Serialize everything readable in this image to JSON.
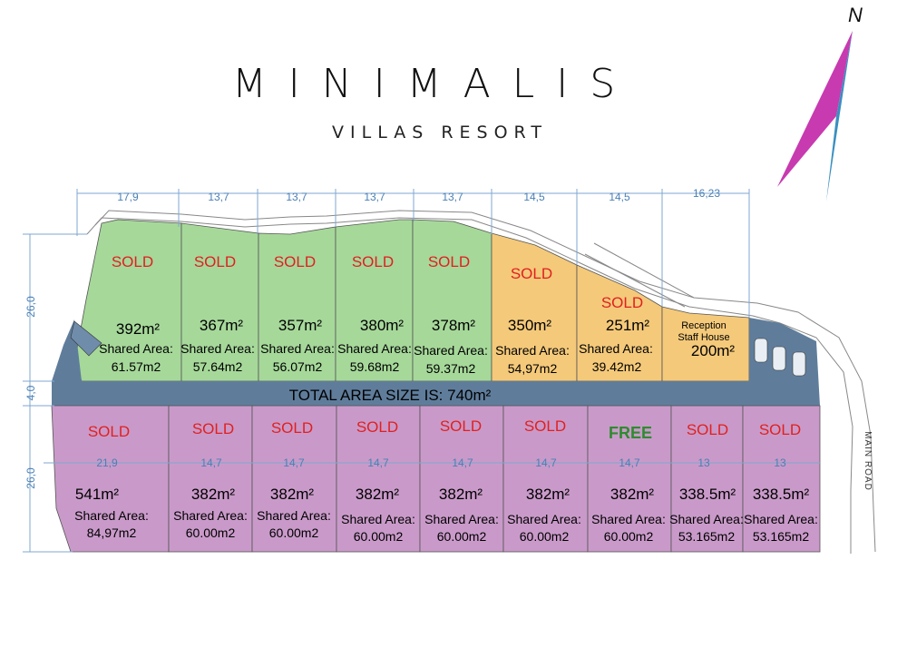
{
  "brand": {
    "title": "MINIMALIS",
    "subtitle": "VILLAS RESORT"
  },
  "compass": {
    "label": "N"
  },
  "colors": {
    "sold_text": "#e02020",
    "free_text": "#2e8b2e",
    "north_row": "#a6d89a",
    "east_row": "#f4c97a",
    "south_row": "#c99ac9",
    "road": "#5f7d9b",
    "dimension": "#4a7fb5"
  },
  "dimensions": {
    "top": [
      "17,9",
      "13,7",
      "13,7",
      "13,7",
      "13,7",
      "14,5",
      "14,5",
      "16,23"
    ],
    "left_top": "26,0",
    "left_mid": "4,0",
    "left_bottom": "26,0"
  },
  "road": {
    "total_label": "TOTAL AREA SIZE IS:",
    "total_value": "740m²",
    "main_road": "MAIN ROAD"
  },
  "top_lots": [
    {
      "status": "SOLD",
      "area": "392m²",
      "shared_label": "Shared Area:",
      "shared": "61.57m2"
    },
    {
      "status": "SOLD",
      "area": "367m²",
      "shared_label": "Shared Area:",
      "shared": "57.64m2"
    },
    {
      "status": "SOLD",
      "area": "357m²",
      "shared_label": "Shared Area:",
      "shared": "56.07m2"
    },
    {
      "status": "SOLD",
      "area": "380m²",
      "shared_label": "Shared Area:",
      "shared": "59.68m2"
    },
    {
      "status": "SOLD",
      "area": "378m²",
      "shared_label": "Shared Area:",
      "shared": "59.37m2"
    },
    {
      "status": "SOLD",
      "area": "350m²",
      "shared_label": "Shared Area:",
      "shared": "54,97m2"
    },
    {
      "status": "SOLD",
      "area": "251m²",
      "shared_label": "Shared Area:",
      "shared": "39.42m2"
    }
  ],
  "reception": {
    "line1": "Reception",
    "line2": "Staff House",
    "area": "200m²"
  },
  "bottom_lots": [
    {
      "status": "SOLD",
      "width": "21,9",
      "area": "541m²",
      "shared_label": "Shared Area:",
      "shared": "84,97m2"
    },
    {
      "status": "SOLD",
      "width": "14,7",
      "area": "382m²",
      "shared_label": "Shared Area:",
      "shared": "60.00m2"
    },
    {
      "status": "SOLD",
      "width": "14,7",
      "area": "382m²",
      "shared_label": "Shared Area:",
      "shared": "60.00m2"
    },
    {
      "status": "SOLD",
      "width": "14,7",
      "area": "382m²",
      "shared_label": "Shared Area:",
      "shared": "60.00m2"
    },
    {
      "status": "SOLD",
      "width": "14,7",
      "area": "382m²",
      "shared_label": "Shared Area:",
      "shared": "60.00m2"
    },
    {
      "status": "SOLD",
      "width": "14,7",
      "area": "382m²",
      "shared_label": "Shared Area:",
      "shared": "60.00m2"
    },
    {
      "status": "FREE",
      "width": "14,7",
      "area": "382m²",
      "shared_label": "Shared Area:",
      "shared": "60.00m2"
    },
    {
      "status": "SOLD",
      "width": "13",
      "area": "338.5m²",
      "shared_label": "Shared Area:",
      "shared": "53.165m2"
    },
    {
      "status": "SOLD",
      "width": "13",
      "area": "338.5m²",
      "shared_label": "Shared Area:",
      "shared": "53.165m2"
    }
  ]
}
